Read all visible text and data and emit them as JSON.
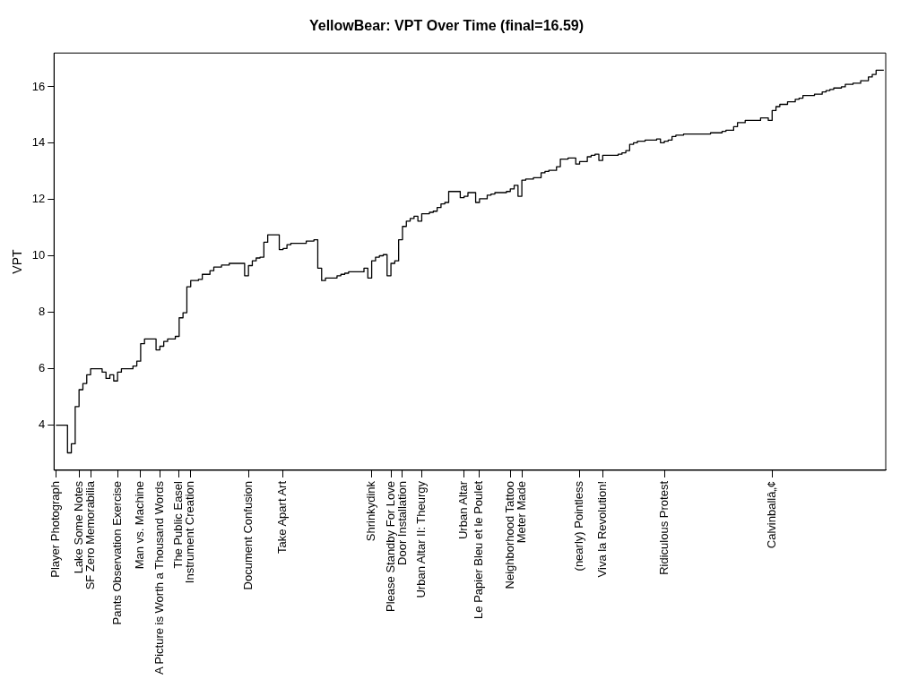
{
  "chart_data": {
    "type": "step",
    "title": "YellowBear: VPT Over Time (final=16.59)",
    "ylabel": "VPT",
    "categories": [
      "Player Photograph",
      null,
      null,
      null,
      null,
      null,
      "Lake Some Notes",
      null,
      null,
      "SF Zero Memorabilia",
      null,
      null,
      null,
      null,
      null,
      null,
      "Pants Observation Exercise",
      null,
      null,
      null,
      null,
      null,
      "Man vs. Machine",
      null,
      null,
      null,
      null,
      "A Picture is Worth a Thousand Words",
      null,
      null,
      null,
      null,
      "The Public Easel",
      null,
      null,
      "Instrument Creation",
      null,
      null,
      null,
      null,
      null,
      null,
      null,
      null,
      null,
      null,
      null,
      null,
      null,
      null,
      "Document Confusion",
      null,
      null,
      null,
      null,
      null,
      null,
      null,
      null,
      "Take Apart Art",
      null,
      null,
      null,
      null,
      null,
      null,
      null,
      null,
      null,
      null,
      null,
      null,
      null,
      null,
      null,
      null,
      null,
      null,
      null,
      null,
      null,
      null,
      "Shrinkydink",
      null,
      null,
      null,
      null,
      "Please Standby For Love",
      null,
      null,
      "Door Installation",
      null,
      null,
      null,
      null,
      "Urban Altar II: Theurgy",
      null,
      null,
      null,
      null,
      null,
      null,
      null,
      null,
      null,
      null,
      "Urban Altar",
      null,
      null,
      null,
      "Le Papier Bleu et le Poulet",
      null,
      null,
      null,
      null,
      null,
      null,
      null,
      "Neighborhood Tattoo",
      null,
      null,
      "Meter Made",
      null,
      null,
      null,
      null,
      null,
      null,
      null,
      null,
      null,
      null,
      null,
      null,
      null,
      null,
      "(nearly) Pointless",
      null,
      null,
      null,
      null,
      null,
      "Viva la Revolution!",
      null,
      null,
      null,
      null,
      null,
      null,
      null,
      null,
      null,
      null,
      null,
      null,
      null,
      null,
      null,
      "Ridiculous Protest",
      null,
      null,
      null,
      null,
      null,
      null,
      null,
      null,
      null,
      null,
      null,
      null,
      null,
      null,
      null,
      null,
      null,
      null,
      null,
      null,
      null,
      null,
      null,
      null,
      null,
      null,
      null,
      "Calvinballâ„¢",
      null,
      null,
      null,
      null,
      null,
      null,
      null,
      null,
      null,
      null,
      null,
      null,
      null,
      null,
      null,
      null,
      null,
      null,
      null,
      null,
      null,
      null,
      null,
      null,
      null,
      null,
      null,
      null,
      null
    ],
    "values": [
      4,
      4,
      4,
      4,
      3.02,
      3.34,
      4.66,
      5.26,
      5.48,
      5.79,
      6,
      6,
      6,
      5.88,
      5.66,
      5.79,
      5.57,
      5.88,
      6,
      6,
      6,
      6.1,
      6.27,
      6.89,
      7.06,
      7.06,
      7.06,
      6.67,
      6.8,
      6.97,
      7.06,
      7.06,
      7.15,
      7.81,
      7.99,
      8.91,
      9.13,
      9.13,
      9.17,
      9.35,
      9.35,
      9.48,
      9.61,
      9.61,
      9.68,
      9.68,
      9.74,
      9.74,
      9.74,
      9.74,
      9.3,
      9.66,
      9.83,
      9.93,
      9.96,
      10.49,
      10.75,
      10.75,
      10.75,
      10.23,
      10.27,
      10.4,
      10.45,
      10.45,
      10.45,
      10.45,
      10.53,
      10.53,
      10.58,
      9.57,
      9.13,
      9.22,
      9.22,
      9.22,
      9.3,
      9.35,
      9.39,
      9.44,
      9.44,
      9.44,
      9.44,
      9.57,
      9.22,
      9.83,
      9.96,
      10.01,
      10.05,
      9.3,
      9.74,
      9.83,
      10.58,
      11.05,
      11.24,
      11.33,
      11.41,
      11.24,
      11.5,
      11.5,
      11.55,
      11.59,
      11.72,
      11.85,
      11.9,
      12.29,
      12.29,
      12.29,
      12.07,
      12.12,
      12.25,
      12.25,
      11.9,
      12.03,
      12.03,
      12.16,
      12.2,
      12.25,
      12.25,
      12.25,
      12.29,
      12.38,
      12.51,
      12.12,
      12.69,
      12.73,
      12.73,
      12.78,
      12.78,
      12.95,
      13,
      13.04,
      13.04,
      13.17,
      13.44,
      13.44,
      13.48,
      13.48,
      13.26,
      13.35,
      13.35,
      13.52,
      13.57,
      13.61,
      13.39,
      13.57,
      13.57,
      13.57,
      13.57,
      13.61,
      13.66,
      13.74,
      13.96,
      14.02,
      14.07,
      14.07,
      14.11,
      14.11,
      14.11,
      14.15,
      14.02,
      14.07,
      14.11,
      14.24,
      14.29,
      14.29,
      14.33,
      14.33,
      14.33,
      14.33,
      14.33,
      14.33,
      14.33,
      14.37,
      14.37,
      14.37,
      14.42,
      14.46,
      14.46,
      14.59,
      14.73,
      14.73,
      14.81,
      14.81,
      14.81,
      14.81,
      14.9,
      14.9,
      14.81,
      15.16,
      15.3,
      15.38,
      15.38,
      15.47,
      15.47,
      15.56,
      15.6,
      15.69,
      15.69,
      15.69,
      15.74,
      15.74,
      15.82,
      15.87,
      15.91,
      15.96,
      15.96,
      16,
      16.09,
      16.09,
      16.13,
      16.13,
      16.22,
      16.22,
      16.35,
      16.44,
      16.59,
      16.59
    ],
    "color": "#000000",
    "ylim": [
      2.4,
      17.2
    ],
    "yticks": [
      4,
      6,
      8,
      10,
      12,
      14,
      16
    ],
    "grid": false,
    "legend": false,
    "marker": "none",
    "line_style": "solid"
  }
}
